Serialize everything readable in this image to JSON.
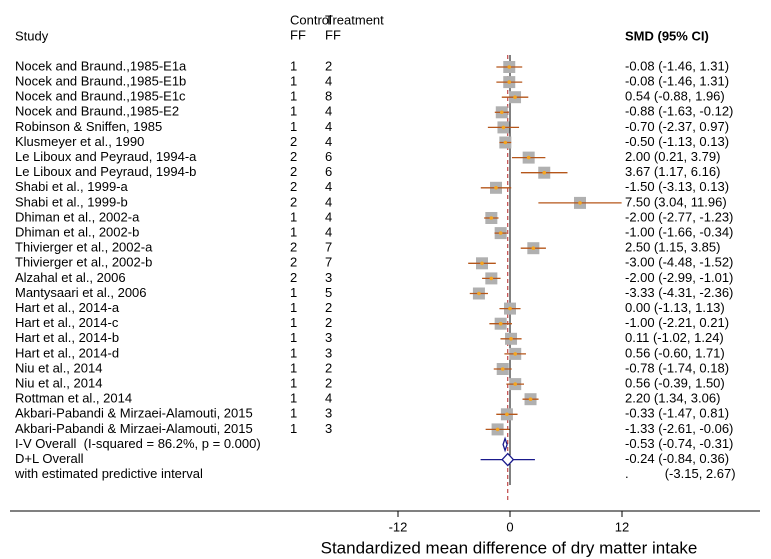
{
  "chart_data": {
    "type": "forest",
    "headers": {
      "study": "Study",
      "control": [
        "Control",
        "FF"
      ],
      "treatment": [
        "Treatment",
        "FF"
      ],
      "effect": "SMD (95% CI)"
    },
    "studies": [
      {
        "name": "Nocek and Braund.,1985-E1a",
        "control": 1,
        "treatment": 2,
        "estimate": -0.08,
        "ci": [
          -1.46,
          1.31
        ],
        "value_label": "-0.08 (-1.46, 1.31)"
      },
      {
        "name": "Nocek and Braund.,1985-E1b",
        "control": 1,
        "treatment": 4,
        "estimate": -0.08,
        "ci": [
          -1.46,
          1.31
        ],
        "value_label": "-0.08 (-1.46, 1.31)"
      },
      {
        "name": "Nocek and Braund.,1985-E1c",
        "control": 1,
        "treatment": 8,
        "estimate": 0.54,
        "ci": [
          -0.88,
          1.96
        ],
        "value_label": "0.54 (-0.88, 1.96)"
      },
      {
        "name": "Nocek and Braund.,1985-E2",
        "control": 1,
        "treatment": 4,
        "estimate": -0.88,
        "ci": [
          -1.63,
          -0.12
        ],
        "value_label": "-0.88 (-1.63, -0.12)"
      },
      {
        "name": "Robinson & Sniffen, 1985",
        "control": 1,
        "treatment": 4,
        "estimate": -0.7,
        "ci": [
          -2.37,
          0.97
        ],
        "value_label": "-0.70 (-2.37, 0.97)"
      },
      {
        "name": "Klusmeyer et al., 1990",
        "control": 2,
        "treatment": 4,
        "estimate": -0.5,
        "ci": [
          -1.13,
          0.13
        ],
        "value_label": "-0.50 (-1.13, 0.13)"
      },
      {
        "name": "Le Liboux and Peyraud, 1994-a",
        "control": 2,
        "treatment": 6,
        "estimate": 2.0,
        "ci": [
          0.21,
          3.79
        ],
        "value_label": "2.00 (0.21, 3.79)"
      },
      {
        "name": "Le Liboux and Peyraud, 1994-b",
        "control": 2,
        "treatment": 6,
        "estimate": 3.67,
        "ci": [
          1.17,
          6.16
        ],
        "value_label": "3.67 (1.17, 6.16)"
      },
      {
        "name": "Shabi et al., 1999-a",
        "control": 2,
        "treatment": 4,
        "estimate": -1.5,
        "ci": [
          -3.13,
          0.13
        ],
        "value_label": "-1.50 (-3.13, 0.13)"
      },
      {
        "name": "Shabi et al., 1999-b",
        "control": 2,
        "treatment": 4,
        "estimate": 7.5,
        "ci": [
          3.04,
          11.96
        ],
        "value_label": "7.50 (3.04, 11.96)"
      },
      {
        "name": "Dhiman et al., 2002-a",
        "control": 1,
        "treatment": 4,
        "estimate": -2.0,
        "ci": [
          -2.77,
          -1.23
        ],
        "value_label": "-2.00 (-2.77, -1.23)"
      },
      {
        "name": "Dhiman et al., 2002-b",
        "control": 1,
        "treatment": 4,
        "estimate": -1.0,
        "ci": [
          -1.66,
          -0.34
        ],
        "value_label": "-1.00 (-1.66, -0.34)"
      },
      {
        "name": "Thivierger et al., 2002-a",
        "control": 2,
        "treatment": 7,
        "estimate": 2.5,
        "ci": [
          1.15,
          3.85
        ],
        "value_label": "2.50 (1.15, 3.85)"
      },
      {
        "name": "Thivierger et al., 2002-b",
        "control": 2,
        "treatment": 7,
        "estimate": -3.0,
        "ci": [
          -4.48,
          -1.52
        ],
        "value_label": "-3.00 (-4.48, -1.52)"
      },
      {
        "name": "Alzahal et al., 2006",
        "control": 2,
        "treatment": 3,
        "estimate": -2.0,
        "ci": [
          -2.99,
          -1.01
        ],
        "value_label": "-2.00 (-2.99, -1.01)"
      },
      {
        "name": "Mantysaari et al., 2006",
        "control": 1,
        "treatment": 5,
        "estimate": -3.33,
        "ci": [
          -4.31,
          -2.36
        ],
        "value_label": "-3.33 (-4.31, -2.36)"
      },
      {
        "name": "Hart et al., 2014-a",
        "control": 1,
        "treatment": 2,
        "estimate": 0.0,
        "ci": [
          -1.13,
          1.13
        ],
        "value_label": "0.00 (-1.13, 1.13)"
      },
      {
        "name": "Hart et al., 2014-c",
        "control": 1,
        "treatment": 2,
        "estimate": -1.0,
        "ci": [
          -2.21,
          0.21
        ],
        "value_label": "-1.00 (-2.21, 0.21)"
      },
      {
        "name": "Hart et al., 2014-b",
        "control": 1,
        "treatment": 3,
        "estimate": 0.11,
        "ci": [
          -1.02,
          1.24
        ],
        "value_label": "0.11 (-1.02, 1.24)"
      },
      {
        "name": "Hart et al., 2014-d",
        "control": 1,
        "treatment": 3,
        "estimate": 0.56,
        "ci": [
          -0.6,
          1.71
        ],
        "value_label": "0.56 (-0.60, 1.71)"
      },
      {
        "name": "Niu et al., 2014",
        "control": 1,
        "treatment": 2,
        "estimate": -0.78,
        "ci": [
          -1.74,
          0.18
        ],
        "value_label": "-0.78 (-1.74, 0.18)"
      },
      {
        "name": "Niu et al., 2014",
        "control": 1,
        "treatment": 2,
        "estimate": 0.56,
        "ci": [
          -0.39,
          1.5
        ],
        "value_label": "0.56 (-0.39, 1.50)"
      },
      {
        "name": "Rottman et al., 2014",
        "control": 1,
        "treatment": 4,
        "estimate": 2.2,
        "ci": [
          1.34,
          3.06
        ],
        "value_label": "2.20 (1.34, 3.06)"
      },
      {
        "name": "Akbari-Pabandi & Mirzaei-Alamouti, 2015",
        "control": 1,
        "treatment": 3,
        "estimate": -0.33,
        "ci": [
          -1.47,
          0.81
        ],
        "value_label": "-0.33 (-1.47, 0.81)"
      },
      {
        "name": "Akbari-Pabandi & Mirzaei-Alamouti, 2015",
        "control": 1,
        "treatment": 3,
        "estimate": -1.33,
        "ci": [
          -2.61,
          -0.06
        ],
        "value_label": "-1.33 (-2.61, -0.06)"
      }
    ],
    "overall": [
      {
        "name": "I-V Overall  (I-squared = 86.2%, p = 0.000)",
        "estimate": -0.53,
        "ci": [
          -0.74,
          -0.31
        ],
        "value_label": "-0.53 (-0.74, -0.31)"
      },
      {
        "name": "D+L Overall",
        "estimate": -0.24,
        "ci": [
          -0.84,
          0.36
        ],
        "value_label": "-0.24 (-0.84, 0.36)"
      }
    ],
    "predictive": {
      "name": "with estimated predictive interval",
      "ci": [
        -3.15,
        2.67
      ],
      "value_label": ".          (-3.15, 2.67)"
    },
    "xlim": [
      -12,
      12
    ],
    "xticks": [
      -12,
      0,
      12
    ],
    "xlabel": "Standardized mean difference of dry matter intake",
    "colors": {
      "box": "#b0b0b0",
      "point": "#f5a623",
      "ci": "#b5561a",
      "overall": "#1a1a8c",
      "reference": "#b22222"
    }
  }
}
